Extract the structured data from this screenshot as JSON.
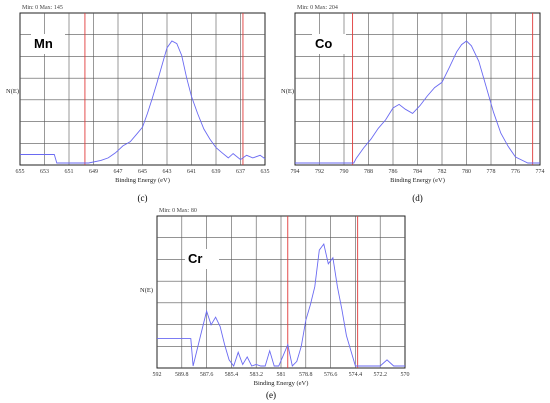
{
  "chart_data": [
    {
      "type": "line",
      "panel": "c",
      "caption": "(c)",
      "element": "Mn",
      "minmax": "Min: 0    Max: 145",
      "ylabel": "N(E)",
      "xlabel": "Binding Energy (eV)",
      "xlim": [
        655,
        635
      ],
      "ticks": [
        "655",
        "653",
        "651",
        "649",
        "647",
        "645",
        "643",
        "641",
        "639",
        "637",
        "635"
      ],
      "ref_lines": [
        649.7,
        636.8
      ],
      "color": "#6a6af2",
      "x": [
        655,
        652.2,
        652,
        651.4,
        649.4,
        648.4,
        647.8,
        647.2,
        646.6,
        646,
        645.4,
        645,
        644.6,
        644.2,
        643.8,
        643.4,
        643,
        642.6,
        642.2,
        641.8,
        641.4,
        641,
        640.5,
        640,
        639.5,
        639,
        638.5,
        638,
        637.6,
        637,
        636.5,
        636,
        635.4,
        635
      ],
      "y": [
        10,
        10,
        0,
        0,
        0,
        3,
        6,
        12,
        20,
        25,
        35,
        42,
        58,
        76,
        95,
        115,
        135,
        143,
        140,
        126,
        100,
        78,
        58,
        40,
        28,
        18,
        12,
        6,
        11,
        4,
        9,
        6,
        9,
        5
      ]
    },
    {
      "type": "line",
      "panel": "d",
      "caption": "(d)",
      "element": "Co",
      "minmax": "Min: 0    Max: 204",
      "ylabel": "N(E)",
      "xlabel": "Binding Energy (eV)",
      "xlim": [
        794,
        774
      ],
      "ticks": [
        "794",
        "792",
        "790",
        "788",
        "786",
        "784",
        "782",
        "780",
        "778",
        "776",
        "774"
      ],
      "ref_lines": [
        789.3,
        774.6
      ],
      "color": "#6a6af2",
      "x": [
        794,
        789.2,
        789,
        788.4,
        787.8,
        787.2,
        786.6,
        786,
        785.5,
        785,
        784.4,
        783.8,
        783.2,
        782.6,
        782,
        781.4,
        780.8,
        780.4,
        780,
        779.6,
        779,
        778.4,
        777.8,
        777.2,
        776.6,
        776,
        775.4,
        775,
        774
      ],
      "y": [
        0,
        0,
        8,
        25,
        40,
        58,
        72,
        92,
        98,
        90,
        83,
        96,
        112,
        126,
        135,
        160,
        186,
        198,
        204,
        196,
        170,
        128,
        85,
        50,
        28,
        10,
        4,
        0,
        0
      ]
    },
    {
      "type": "line",
      "panel": "e",
      "caption": "(e)",
      "element": "Cr",
      "minmax": "Min: 0    Max: 80",
      "ylabel": "N(E)",
      "xlabel": "Binding Energy (eV)",
      "xlim": [
        592,
        570
      ],
      "ticks": [
        "592",
        "589.8",
        "587.6",
        "585.4",
        "583.2",
        "581",
        "578.8",
        "576.6",
        "574.4",
        "572.2",
        "570"
      ],
      "ref_lines": [
        580.4,
        574.2
      ],
      "color": "#6a6af2",
      "x": [
        592,
        589,
        588.8,
        588.2,
        587.6,
        587.2,
        586.8,
        586.4,
        586,
        585.6,
        585.2,
        584.8,
        584.4,
        584,
        583.6,
        583.2,
        582.8,
        582.4,
        582,
        581.6,
        581.2,
        580.8,
        580.4,
        580,
        579.6,
        579.2,
        578.8,
        578.4,
        578,
        577.6,
        577.2,
        576.8,
        576.4,
        576,
        575.6,
        575.2,
        574.8,
        574.4,
        574,
        573.5,
        572.6,
        572.2,
        571.6,
        571,
        570.5,
        570
      ],
      "y": [
        18,
        18,
        0,
        18,
        36,
        27,
        32,
        26,
        14,
        4,
        0,
        9,
        1,
        6,
        0,
        1,
        0,
        0,
        10,
        0,
        0,
        7,
        14,
        0,
        3,
        13,
        30,
        40,
        52,
        76,
        80,
        67,
        71,
        52,
        37,
        20,
        10,
        0,
        0,
        0,
        0,
        0,
        4,
        0,
        0,
        0
      ]
    }
  ]
}
